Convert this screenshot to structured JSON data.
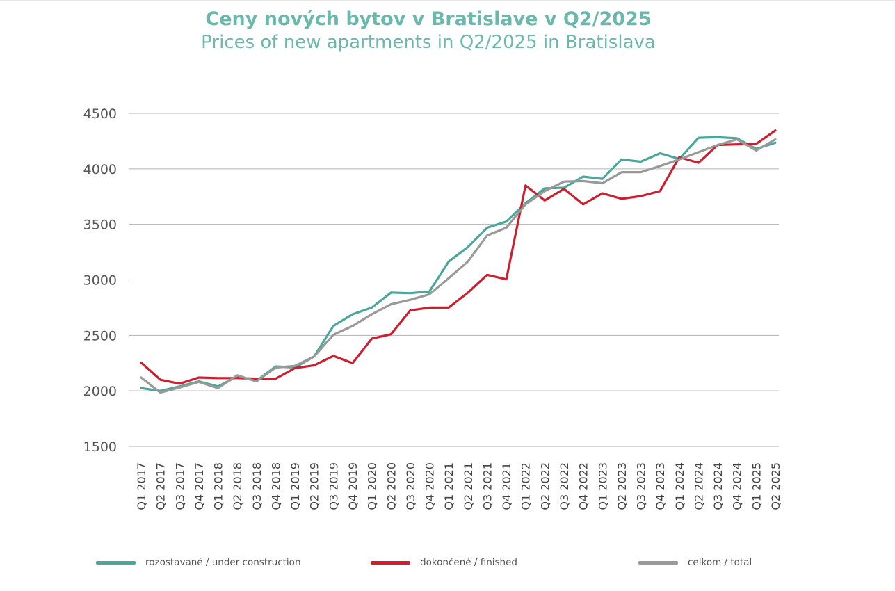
{
  "chart_data": {
    "type": "line",
    "title": "Ceny nových bytov v Bratislave v Q2/2025",
    "subtitle": "Prices of new apartments in Q2/2025 in Bratislava",
    "categories": [
      "Q1 2017",
      "Q2 2017",
      "Q3 2017",
      "Q4 2017",
      "Q1 2018",
      "Q2 2018",
      "Q3 2018",
      "Q4 2018",
      "Q1 2019",
      "Q2 2019",
      "Q3 2019",
      "Q4 2019",
      "Q1 2020",
      "Q2 2020",
      "Q3 2020",
      "Q4 2020",
      "Q1 2021",
      "Q2 2021",
      "Q3 2021",
      "Q4 2021",
      "Q1 2022",
      "Q2 2022",
      "Q3 2022",
      "Q4 2022",
      "Q1 2023",
      "Q2 2023",
      "Q3 2023",
      "Q4 2023",
      "Q1 2024",
      "Q2 2024",
      "Q3 2024",
      "Q4 2024",
      "Q1 2025",
      "Q2 2025"
    ],
    "ylim": [
      1500,
      4500
    ],
    "yticks": [
      "1500",
      "2000",
      "2500",
      "3000",
      "3500",
      "4000",
      "4500"
    ],
    "grid": true,
    "legend_position": "bottom",
    "series": [
      {
        "name": "rozostavané / under construction",
        "color": "#4aa79b",
        "values": [
          2025,
          2000,
          2040,
          2085,
          2040,
          2130,
          2090,
          2220,
          2210,
          2310,
          2585,
          2690,
          2750,
          2885,
          2880,
          2895,
          3165,
          3295,
          3470,
          3525,
          3690,
          3825,
          3830,
          3930,
          3910,
          4085,
          4065,
          4140,
          4090,
          4280,
          4285,
          4275,
          4180,
          4235
        ]
      },
      {
        "name": "dokončené / finished",
        "color": "#cc2030",
        "values": [
          2255,
          2100,
          2065,
          2120,
          2115,
          2115,
          2110,
          2110,
          2205,
          2230,
          2315,
          2250,
          2470,
          2510,
          2725,
          2750,
          2750,
          2885,
          3045,
          3005,
          3850,
          3715,
          3820,
          3680,
          3780,
          3730,
          3755,
          3800,
          4105,
          4055,
          4215,
          4220,
          4225,
          4345
        ]
      },
      {
        "name": "celkom / total",
        "color": "#999999",
        "values": [
          2120,
          1985,
          2030,
          2080,
          2025,
          2140,
          2085,
          2210,
          2225,
          2310,
          2505,
          2585,
          2690,
          2780,
          2820,
          2870,
          3015,
          3165,
          3400,
          3470,
          3680,
          3800,
          3885,
          3890,
          3870,
          3970,
          3970,
          4025,
          4085,
          4150,
          4215,
          4265,
          4165,
          4265
        ]
      }
    ]
  }
}
